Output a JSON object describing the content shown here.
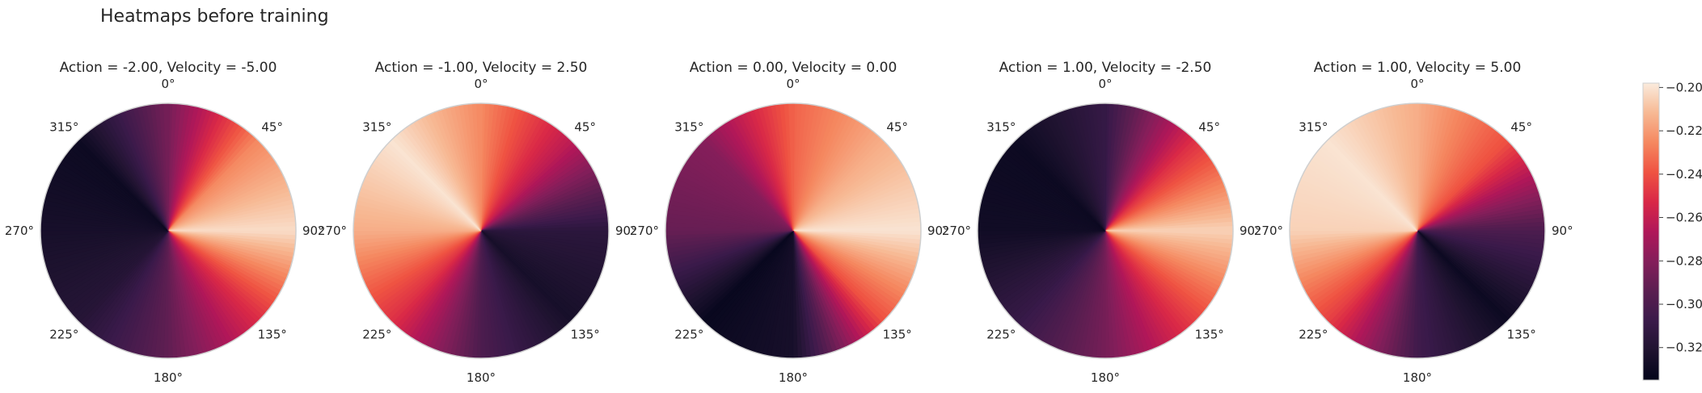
{
  "figure": {
    "suptitle": "Heatmaps before training"
  },
  "colormap": {
    "name": "rocket",
    "stops": [
      {
        "t": 0.0,
        "color": "#03051a"
      },
      {
        "t": 0.1,
        "color": "#1f1330"
      },
      {
        "t": 0.2,
        "color": "#3a1a4a"
      },
      {
        "t": 0.3,
        "color": "#5b1e51"
      },
      {
        "t": 0.4,
        "color": "#841e5a"
      },
      {
        "t": 0.5,
        "color": "#b01759"
      },
      {
        "t": 0.6,
        "color": "#d92847"
      },
      {
        "t": 0.7,
        "color": "#ef5342"
      },
      {
        "t": 0.8,
        "color": "#f58860"
      },
      {
        "t": 0.9,
        "color": "#f7b994"
      },
      {
        "t": 1.0,
        "color": "#faebdd"
      }
    ]
  },
  "chart_data": [
    {
      "type": "heatmap",
      "projection": "polar",
      "title": "Action = -2.00, Velocity = -5.00",
      "theta_tick_labels": [
        "0°",
        "45°",
        "90°",
        "135°",
        "180°",
        "225°",
        "270°",
        "315°"
      ],
      "value_range": [
        -0.335,
        -0.198
      ],
      "angle_deg": [
        0,
        45,
        90,
        135,
        180,
        225,
        270,
        315,
        360
      ],
      "values": [
        -0.285,
        -0.225,
        -0.202,
        -0.252,
        -0.292,
        -0.318,
        -0.325,
        -0.33,
        -0.285
      ]
    },
    {
      "type": "heatmap",
      "projection": "polar",
      "title": "Action = -1.00, Velocity = 2.50",
      "theta_tick_labels": [
        "0°",
        "45°",
        "90°",
        "135°",
        "180°",
        "225°",
        "270°",
        "315°"
      ],
      "value_range": [
        -0.335,
        -0.198
      ],
      "angle_deg": [
        0,
        45,
        90,
        135,
        180,
        225,
        270,
        315,
        360
      ],
      "values": [
        -0.225,
        -0.262,
        -0.315,
        -0.325,
        -0.3,
        -0.25,
        -0.215,
        -0.2,
        -0.225
      ]
    },
    {
      "type": "heatmap",
      "projection": "polar",
      "title": "Action = 0.00, Velocity = 0.00",
      "theta_tick_labels": [
        "0°",
        "45°",
        "90°",
        "135°",
        "180°",
        "225°",
        "270°",
        "315°"
      ],
      "value_range": [
        -0.335,
        -0.198
      ],
      "angle_deg": [
        0,
        45,
        90,
        135,
        180,
        225,
        270,
        315,
        360
      ],
      "values": [
        -0.235,
        -0.215,
        -0.2,
        -0.24,
        -0.325,
        -0.332,
        -0.29,
        -0.28,
        -0.235
      ]
    },
    {
      "type": "heatmap",
      "projection": "polar",
      "title": "Action = 1.00, Velocity = -2.50",
      "theta_tick_labels": [
        "0°",
        "45°",
        "90°",
        "135°",
        "180°",
        "225°",
        "270°",
        "315°"
      ],
      "value_range": [
        -0.335,
        -0.198
      ],
      "angle_deg": [
        0,
        45,
        90,
        135,
        180,
        225,
        270,
        315,
        360
      ],
      "values": [
        -0.31,
        -0.25,
        -0.205,
        -0.245,
        -0.285,
        -0.31,
        -0.328,
        -0.33,
        -0.31
      ]
    },
    {
      "type": "heatmap",
      "projection": "polar",
      "title": "Action = 1.00, Velocity = 5.00",
      "theta_tick_labels": [
        "0°",
        "45°",
        "90°",
        "135°",
        "180°",
        "225°",
        "270°",
        "315°"
      ],
      "value_range": [
        -0.335,
        -0.198
      ],
      "angle_deg": [
        0,
        45,
        90,
        135,
        180,
        225,
        270,
        315,
        360
      ],
      "values": [
        -0.215,
        -0.24,
        -0.3,
        -0.33,
        -0.305,
        -0.245,
        -0.205,
        -0.2,
        -0.215
      ]
    },
    {
      "type": "colorbar",
      "range": [
        -0.335,
        -0.198
      ],
      "ticks": [
        -0.32,
        -0.3,
        -0.28,
        -0.26,
        -0.24,
        -0.22,
        -0.2
      ],
      "tick_labels": [
        "−0.32",
        "−0.30",
        "−0.28",
        "−0.26",
        "−0.24",
        "−0.22",
        "−0.20"
      ]
    }
  ]
}
